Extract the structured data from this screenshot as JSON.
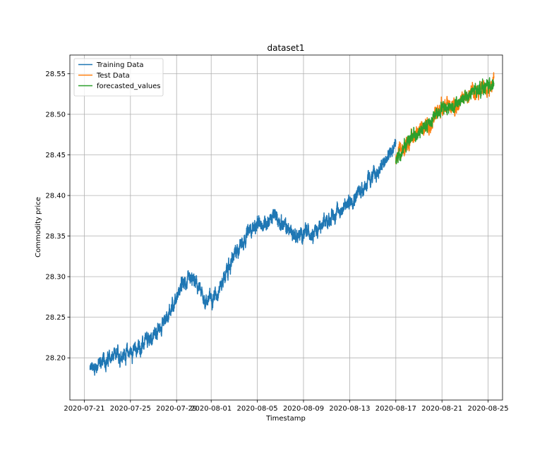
{
  "chart_data": {
    "type": "line",
    "title": "dataset1",
    "xlabel": "Timestamp",
    "ylabel": "Commodity price",
    "x_type": "date",
    "xlim": [
      "2020-07-19T18:00",
      "2020-08-26T06:00"
    ],
    "ylim": [
      28.148,
      28.573
    ],
    "x_ticks": [
      "2020-07-21",
      "2020-07-25",
      "2020-07-29",
      "2020-08-01",
      "2020-08-05",
      "2020-08-09",
      "2020-08-13",
      "2020-08-17",
      "2020-08-21",
      "2020-08-25"
    ],
    "y_ticks": [
      28.2,
      28.25,
      28.3,
      28.35,
      28.4,
      28.45,
      28.5,
      28.55
    ],
    "y_tick_labels": [
      "28.20",
      "28.25",
      "28.30",
      "28.35",
      "28.40",
      "28.45",
      "28.50",
      "28.55"
    ],
    "grid": true,
    "legend_position": "top-left",
    "series": [
      {
        "name": "Training Data",
        "color": "#1f77b4",
        "noise": 0.008,
        "x": [
          "2020-07-21T12:00",
          "2020-07-22T12:00",
          "2020-07-23T12:00",
          "2020-07-24T12:00",
          "2020-07-25T12:00",
          "2020-07-26T12:00",
          "2020-07-27T12:00",
          "2020-07-28T12:00",
          "2020-07-29T12:00",
          "2020-07-30T12:00",
          "2020-07-31T12:00",
          "2020-08-01T12:00",
          "2020-08-02T12:00",
          "2020-08-03T12:00",
          "2020-08-04T12:00",
          "2020-08-05T12:00",
          "2020-08-06T12:00",
          "2020-08-07T12:00",
          "2020-08-08T12:00",
          "2020-08-09T12:00",
          "2020-08-10T12:00",
          "2020-08-11T12:00",
          "2020-08-12T12:00",
          "2020-08-13T12:00",
          "2020-08-14T12:00",
          "2020-08-15T12:00",
          "2020-08-16T12:00",
          "2020-08-17T00:00"
        ],
        "y": [
          28.185,
          28.195,
          28.2,
          28.205,
          28.21,
          28.22,
          28.235,
          28.26,
          28.29,
          28.295,
          28.27,
          28.28,
          28.31,
          28.34,
          28.36,
          28.365,
          28.375,
          28.36,
          28.35,
          28.355,
          28.36,
          28.375,
          28.385,
          28.4,
          28.415,
          28.43,
          28.45,
          28.465
        ]
      },
      {
        "name": "Test Data",
        "color": "#ff7f0e",
        "noise": 0.008,
        "x": [
          "2020-08-17T00:00",
          "2020-08-18T00:00",
          "2020-08-19T00:00",
          "2020-08-20T00:00",
          "2020-08-21T00:00",
          "2020-08-22T00:00",
          "2020-08-23T00:00",
          "2020-08-24T00:00",
          "2020-08-25T00:00",
          "2020-08-25T12:00"
        ],
        "y": [
          28.445,
          28.465,
          28.48,
          28.49,
          28.51,
          28.51,
          28.52,
          28.53,
          28.535,
          28.54
        ]
      },
      {
        "name": "forecasted_values",
        "color": "#2ca02c",
        "noise": 0.007,
        "x": [
          "2020-08-17T00:00",
          "2020-08-18T00:00",
          "2020-08-19T00:00",
          "2020-08-20T00:00",
          "2020-08-21T00:00",
          "2020-08-22T00:00",
          "2020-08-23T00:00",
          "2020-08-24T00:00",
          "2020-08-25T00:00",
          "2020-08-25T12:00"
        ],
        "y": [
          28.445,
          28.465,
          28.48,
          28.49,
          28.51,
          28.51,
          28.52,
          28.53,
          28.535,
          28.54
        ]
      }
    ]
  }
}
